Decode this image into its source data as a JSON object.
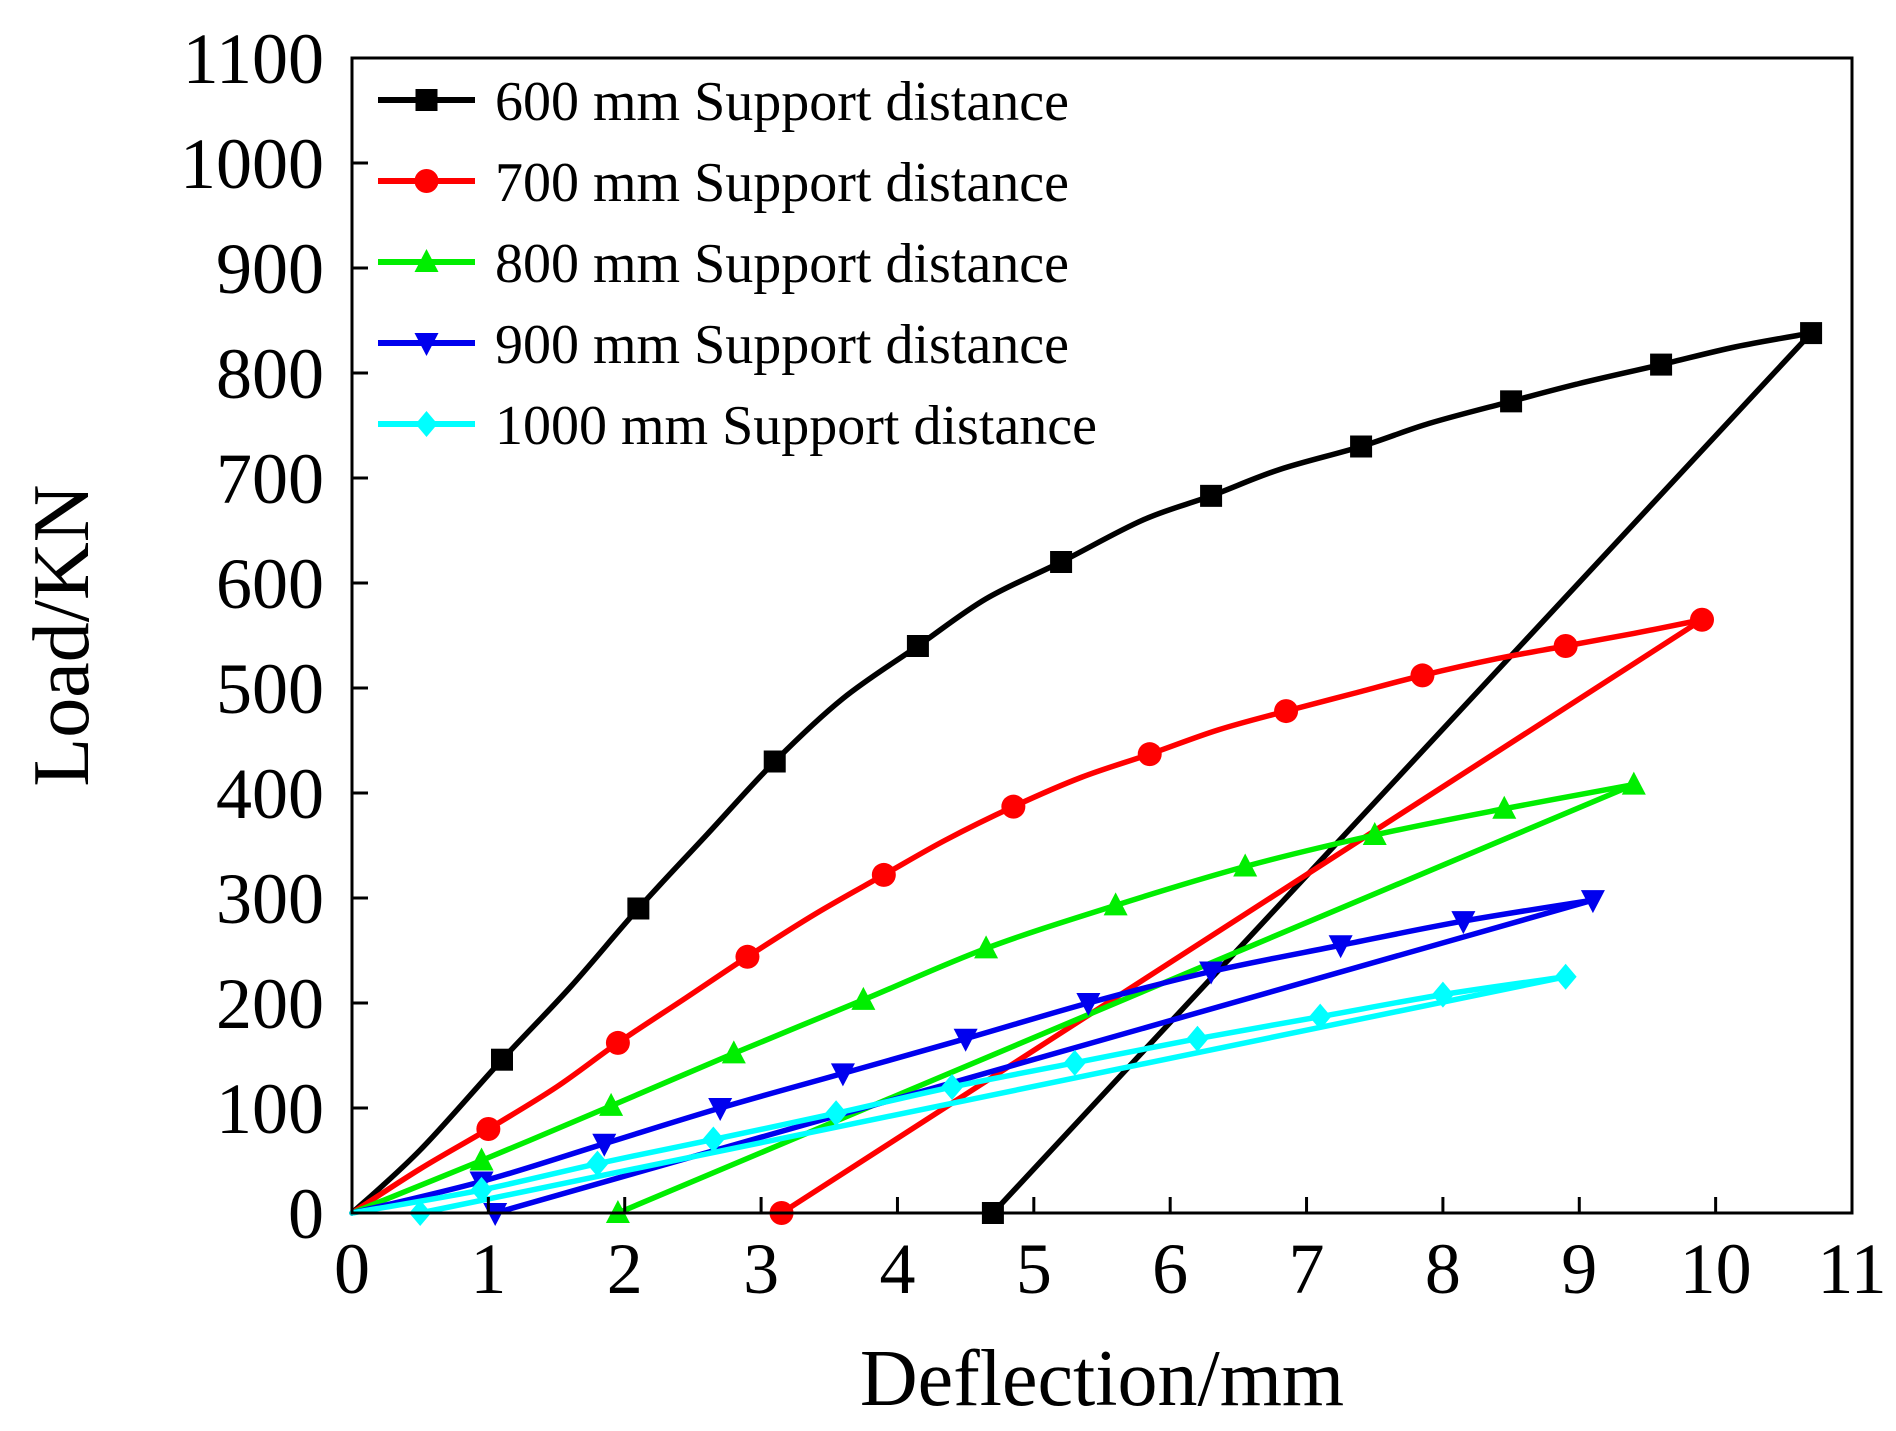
{
  "chart_data": {
    "type": "line",
    "title": "",
    "xlabel": "Deflection/mm",
    "ylabel": "Load/KN",
    "xlim": [
      0,
      11
    ],
    "ylim": [
      0,
      1100
    ],
    "xticks": [
      0,
      1,
      2,
      3,
      4,
      5,
      6,
      7,
      8,
      9,
      10,
      11
    ],
    "yticks": [
      0,
      100,
      200,
      300,
      400,
      500,
      600,
      700,
      800,
      900,
      1000,
      1100
    ],
    "xtick_labels": [
      "0",
      "1",
      "2",
      "3",
      "4",
      "5",
      "6",
      "7",
      "8",
      "9",
      "10",
      "11"
    ],
    "ytick_labels": [
      "0",
      "100",
      "200",
      "300",
      "400",
      "500",
      "600",
      "700",
      "800",
      "900",
      "1000",
      "1100"
    ],
    "grid": false,
    "legend_position": "top-left",
    "series": [
      {
        "name": "600 mm Support distance",
        "color": "#000000",
        "marker": "square",
        "loading": [
          [
            0,
            0
          ],
          [
            0.5,
            60
          ],
          [
            1.1,
            146
          ],
          [
            1.6,
            215
          ],
          [
            2.1,
            290
          ],
          [
            2.6,
            360
          ],
          [
            3.1,
            430
          ],
          [
            3.6,
            490
          ],
          [
            4.15,
            540
          ],
          [
            4.65,
            585
          ],
          [
            5.2,
            620
          ],
          [
            5.8,
            660
          ],
          [
            6.3,
            683
          ],
          [
            6.8,
            708
          ],
          [
            7.4,
            730
          ],
          [
            7.9,
            752
          ],
          [
            8.5,
            773
          ],
          [
            9.0,
            790
          ],
          [
            9.6,
            808
          ],
          [
            10.15,
            825
          ],
          [
            10.7,
            838
          ]
        ],
        "markers": [
          [
            1.1,
            146
          ],
          [
            2.1,
            290
          ],
          [
            3.1,
            430
          ],
          [
            4.15,
            540
          ],
          [
            5.2,
            620
          ],
          [
            6.3,
            683
          ],
          [
            7.4,
            730
          ],
          [
            8.5,
            773
          ],
          [
            9.6,
            808
          ],
          [
            10.7,
            838
          ]
        ],
        "unloading": [
          [
            10.7,
            838
          ],
          [
            4.7,
            0
          ]
        ],
        "end_marker": [
          4.7,
          0
        ]
      },
      {
        "name": "700 mm Support distance",
        "color": "#ff0000",
        "marker": "circle",
        "loading": [
          [
            0,
            0
          ],
          [
            0.5,
            42
          ],
          [
            1.0,
            80
          ],
          [
            1.5,
            120
          ],
          [
            1.95,
            162
          ],
          [
            2.45,
            205
          ],
          [
            2.9,
            244
          ],
          [
            3.4,
            285
          ],
          [
            3.9,
            322
          ],
          [
            4.35,
            355
          ],
          [
            4.85,
            387
          ],
          [
            5.35,
            415
          ],
          [
            5.85,
            437
          ],
          [
            6.35,
            460
          ],
          [
            6.85,
            478
          ],
          [
            7.35,
            495
          ],
          [
            7.85,
            512
          ],
          [
            8.4,
            528
          ],
          [
            8.9,
            540
          ],
          [
            9.4,
            552
          ],
          [
            9.9,
            565
          ]
        ],
        "markers": [
          [
            1.0,
            80
          ],
          [
            1.95,
            162
          ],
          [
            2.9,
            244
          ],
          [
            3.9,
            322
          ],
          [
            4.85,
            387
          ],
          [
            5.85,
            437
          ],
          [
            6.85,
            478
          ],
          [
            7.85,
            512
          ],
          [
            8.9,
            540
          ],
          [
            9.9,
            565
          ]
        ],
        "unloading": [
          [
            9.9,
            565
          ],
          [
            3.15,
            0
          ]
        ],
        "end_marker": [
          3.15,
          0
        ]
      },
      {
        "name": "800 mm Support distance",
        "color": "#00ee00",
        "marker": "triangle-up",
        "loading": [
          [
            0,
            0
          ],
          [
            0.95,
            50
          ],
          [
            1.9,
            102
          ],
          [
            2.8,
            152
          ],
          [
            3.75,
            203
          ],
          [
            4.65,
            252
          ],
          [
            5.6,
            293
          ],
          [
            6.55,
            330
          ],
          [
            7.5,
            360
          ],
          [
            8.45,
            385
          ],
          [
            9.4,
            408
          ]
        ],
        "markers": [
          [
            0.95,
            50
          ],
          [
            1.9,
            102
          ],
          [
            2.8,
            152
          ],
          [
            3.75,
            203
          ],
          [
            4.65,
            252
          ],
          [
            5.6,
            293
          ],
          [
            6.55,
            330
          ],
          [
            7.5,
            360
          ],
          [
            8.45,
            385
          ],
          [
            9.4,
            408
          ]
        ],
        "unloading": [
          [
            9.4,
            408
          ],
          [
            1.95,
            0
          ]
        ],
        "end_marker": [
          1.95,
          0
        ]
      },
      {
        "name": "900 mm Support distance",
        "color": "#0000ee",
        "marker": "triangle-down",
        "loading": [
          [
            0,
            0
          ],
          [
            0.95,
            30
          ],
          [
            1.85,
            66
          ],
          [
            2.7,
            100
          ],
          [
            3.6,
            133
          ],
          [
            4.5,
            166
          ],
          [
            5.4,
            200
          ],
          [
            6.3,
            230
          ],
          [
            7.25,
            255
          ],
          [
            8.15,
            278
          ],
          [
            9.1,
            298
          ]
        ],
        "markers": [
          [
            0.95,
            30
          ],
          [
            1.85,
            66
          ],
          [
            2.7,
            100
          ],
          [
            3.6,
            133
          ],
          [
            4.5,
            166
          ],
          [
            5.4,
            200
          ],
          [
            6.3,
            230
          ],
          [
            7.25,
            255
          ],
          [
            8.15,
            278
          ],
          [
            9.1,
            298
          ]
        ],
        "unloading": [
          [
            9.1,
            298
          ],
          [
            1.05,
            0
          ]
        ],
        "end_marker": [
          1.05,
          0
        ]
      },
      {
        "name": "1000 mm Support distance",
        "color": "#00ffff",
        "marker": "diamond",
        "loading": [
          [
            0,
            0
          ],
          [
            0.95,
            22
          ],
          [
            1.8,
            47
          ],
          [
            2.65,
            70
          ],
          [
            3.55,
            95
          ],
          [
            4.4,
            120
          ],
          [
            5.3,
            143
          ],
          [
            6.2,
            166
          ],
          [
            7.1,
            187
          ],
          [
            8.0,
            208
          ],
          [
            8.9,
            225
          ]
        ],
        "markers": [
          [
            0.95,
            22
          ],
          [
            1.8,
            47
          ],
          [
            2.65,
            70
          ],
          [
            3.55,
            95
          ],
          [
            4.4,
            120
          ],
          [
            5.3,
            143
          ],
          [
            6.2,
            166
          ],
          [
            7.1,
            187
          ],
          [
            8.0,
            208
          ],
          [
            8.9,
            225
          ]
        ],
        "unloading": [
          [
            8.9,
            225
          ],
          [
            0.5,
            0
          ]
        ],
        "end_marker": [
          0.5,
          0
        ]
      }
    ]
  }
}
